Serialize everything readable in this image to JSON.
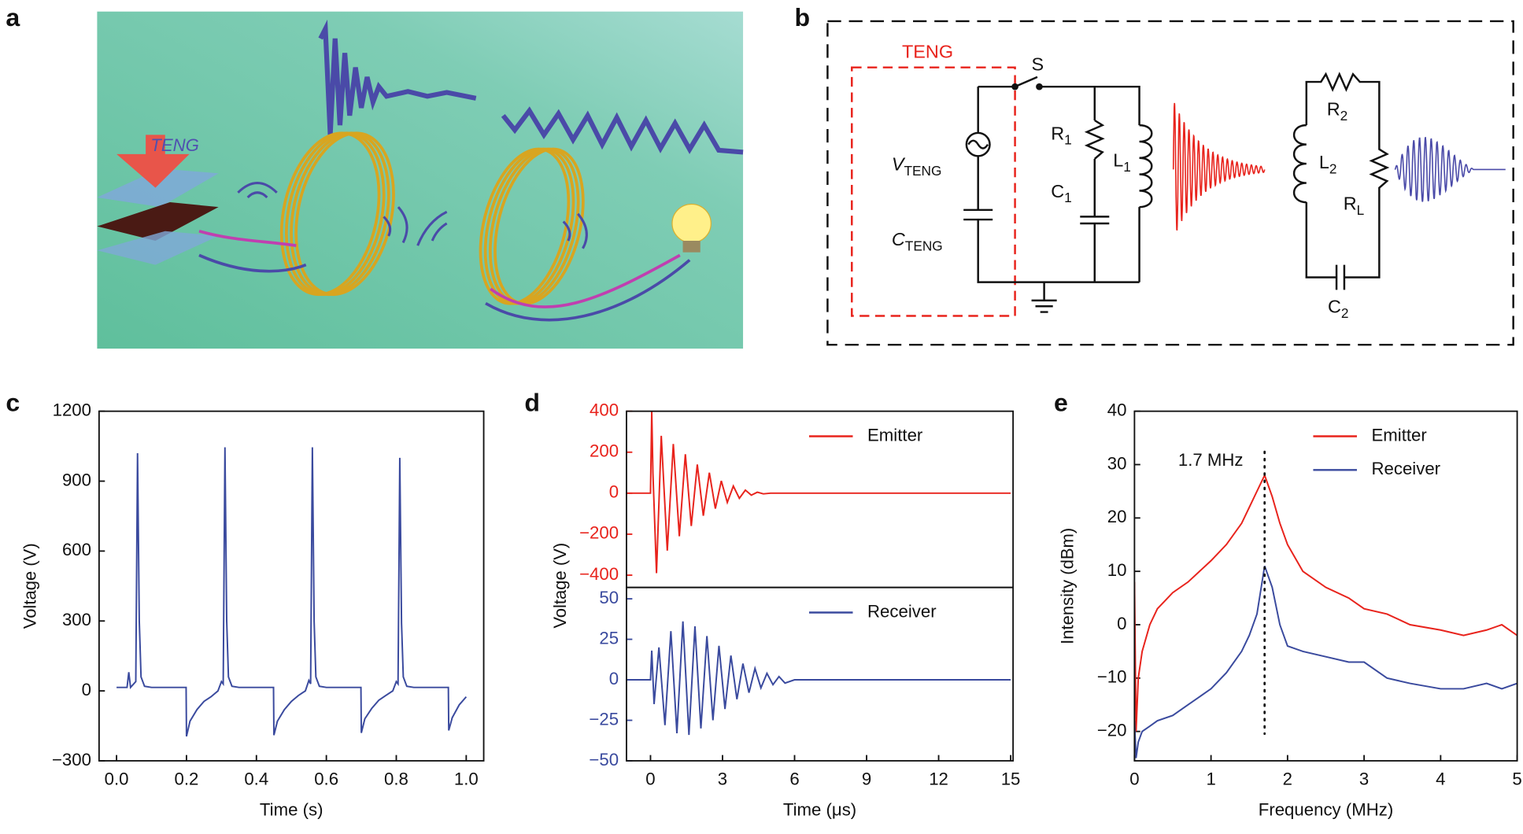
{
  "panel_labels": [
    "a",
    "b",
    "c",
    "d",
    "e"
  ],
  "illustration": {
    "teng_label": "TENG"
  },
  "circuit": {
    "teng_label": "TENG",
    "switch_label": "S",
    "components": [
      {
        "main": "V",
        "sub": "TENG"
      },
      {
        "main": "C",
        "sub": "TENG"
      },
      {
        "main": "R",
        "sub": "1"
      },
      {
        "main": "C",
        "sub": "1"
      },
      {
        "main": "L",
        "sub": "1"
      },
      {
        "main": "R",
        "sub": "2"
      },
      {
        "main": "L",
        "sub": "2"
      },
      {
        "main": "R",
        "sub": "L"
      },
      {
        "main": "C",
        "sub": "2"
      }
    ]
  },
  "chart_data": [
    {
      "type": "line",
      "xlabel": "Time (s)",
      "ylabel": "Voltage (V)",
      "xlim": [
        -0.05,
        1.05
      ],
      "ylim": [
        -300,
        1200
      ],
      "xticks": [
        {
          "value": 0,
          "label": "0.0"
        },
        0.2,
        0.4,
        0.6,
        0.8,
        {
          "value": 1,
          "label": "1.0"
        }
      ],
      "yticks": [
        {
          "value": -300,
          "label": "−300"
        },
        0,
        300,
        600,
        900,
        1200
      ],
      "x": [
        0,
        0.03,
        0.035,
        0.04,
        0.055,
        0.06,
        0.065,
        0.07,
        0.08,
        0.1,
        0.15,
        0.199,
        0.2,
        0.21,
        0.23,
        0.25,
        0.27,
        0.29,
        0.3,
        0.305,
        0.31,
        0.315,
        0.32,
        0.33,
        0.35,
        0.4,
        0.449,
        0.45,
        0.46,
        0.48,
        0.5,
        0.52,
        0.54,
        0.55,
        0.555,
        0.56,
        0.565,
        0.57,
        0.58,
        0.6,
        0.65,
        0.699,
        0.7,
        0.71,
        0.73,
        0.75,
        0.77,
        0.79,
        0.8,
        0.805,
        0.81,
        0.815,
        0.82,
        0.83,
        0.85,
        0.9,
        0.949,
        0.95,
        0.96,
        0.98,
        1.0
      ],
      "series": [
        {
          "color": "#3a4a9e",
          "values": [
            15,
            15,
            80,
            15,
            40,
            1020,
            300,
            60,
            20,
            15,
            15,
            15,
            -195,
            -130,
            -80,
            -45,
            -25,
            0,
            40,
            30,
            1045,
            300,
            60,
            20,
            15,
            15,
            15,
            -190,
            -130,
            -80,
            -45,
            -20,
            0,
            45,
            30,
            1045,
            300,
            60,
            20,
            15,
            15,
            15,
            -180,
            -120,
            -75,
            -40,
            -20,
            0,
            40,
            30,
            1000,
            290,
            60,
            20,
            15,
            15,
            15,
            -170,
            -115,
            -60,
            -25
          ]
        }
      ]
    },
    {
      "type": "line",
      "ylabel": "Voltage (V)",
      "xlim": [
        -1,
        15.1
      ],
      "ylim": [
        -460,
        400
      ],
      "yticks": [
        {
          "value": -400,
          "label": "−400"
        },
        {
          "value": -200,
          "label": "−200"
        },
        0,
        200,
        400
      ],
      "legend": "upper right",
      "x": [
        -1,
        0,
        0.05,
        0.1,
        0.25,
        0.45,
        0.7,
        0.95,
        1.2,
        1.45,
        1.7,
        1.95,
        2.2,
        2.45,
        2.7,
        2.95,
        3.2,
        3.45,
        3.7,
        3.95,
        4.2,
        4.45,
        4.7,
        5,
        6,
        15
      ],
      "series": [
        {
          "name": "Emitter",
          "color": "#e8231c",
          "values": [
            0,
            0,
            400,
            100,
            -390,
            280,
            -280,
            240,
            -210,
            190,
            -160,
            140,
            -110,
            100,
            -75,
            60,
            -45,
            35,
            -25,
            15,
            -10,
            5,
            -3,
            0,
            0,
            0
          ]
        }
      ]
    },
    {
      "type": "line",
      "xlabel": "Time (μs)",
      "xlim": [
        -1,
        15.1
      ],
      "ylim": [
        -50,
        57
      ],
      "xticks": [
        0,
        3,
        6,
        9,
        12,
        15
      ],
      "yticks": [
        {
          "value": -50,
          "label": "−50"
        },
        {
          "value": -25,
          "label": "−25"
        },
        0,
        25,
        50
      ],
      "legend": "upper right",
      "x": [
        -1,
        0,
        0.05,
        0.15,
        0.35,
        0.6,
        0.85,
        1.1,
        1.35,
        1.6,
        1.85,
        2.1,
        2.35,
        2.6,
        2.85,
        3.1,
        3.35,
        3.6,
        3.85,
        4.1,
        4.35,
        4.6,
        4.85,
        5.1,
        5.35,
        5.6,
        6,
        7,
        15
      ],
      "series": [
        {
          "name": "Receiver",
          "color": "#3a4a9e",
          "values": [
            0,
            0,
            18,
            -15,
            20,
            -28,
            30,
            -33,
            36,
            -34,
            33,
            -30,
            27,
            -25,
            21,
            -18,
            15,
            -12,
            10,
            -8,
            7,
            -5,
            4,
            -3,
            2,
            -2,
            0,
            0,
            0
          ]
        }
      ]
    },
    {
      "type": "line",
      "xlabel": "Frequency (MHz)",
      "ylabel": "Intensity (dBm)",
      "xlim": [
        0,
        5
      ],
      "ylim": [
        -25.5,
        40
      ],
      "xticks": [
        0,
        1,
        2,
        3,
        4,
        5
      ],
      "yticks": [
        {
          "value": -20,
          "label": "−20"
        },
        {
          "value": -10,
          "label": "−10"
        },
        0,
        10,
        20,
        30,
        40
      ],
      "legend": "upper right",
      "annotation": {
        "text": "1.7 MHz",
        "x": 1.7
      },
      "x": [
        0,
        0.02,
        0.05,
        0.1,
        0.2,
        0.3,
        0.5,
        0.7,
        1,
        1.2,
        1.4,
        1.5,
        1.6,
        1.7,
        1.8,
        1.9,
        2,
        2.2,
        2.5,
        2.8,
        3,
        3.3,
        3.6,
        4,
        4.3,
        4.6,
        4.8,
        5
      ],
      "series": [
        {
          "name": "Emitter",
          "color": "#e8231c",
          "values": [
            8,
            -20,
            -10,
            -5,
            0,
            3,
            6,
            8,
            12,
            15,
            19,
            22,
            25,
            28,
            24,
            19,
            15,
            10,
            7,
            5,
            3,
            2,
            0,
            -1,
            -2,
            -1,
            0,
            -2
          ]
        },
        {
          "name": "Receiver",
          "color": "#3a4a9e",
          "values": [
            -18,
            -25,
            -22,
            -20,
            -19,
            -18,
            -17,
            -15,
            -12,
            -9,
            -5,
            -2,
            2,
            11,
            7,
            0,
            -4,
            -5,
            -6,
            -7,
            -7,
            -10,
            -11,
            -12,
            -12,
            -11,
            -12,
            -11
          ]
        }
      ]
    }
  ]
}
